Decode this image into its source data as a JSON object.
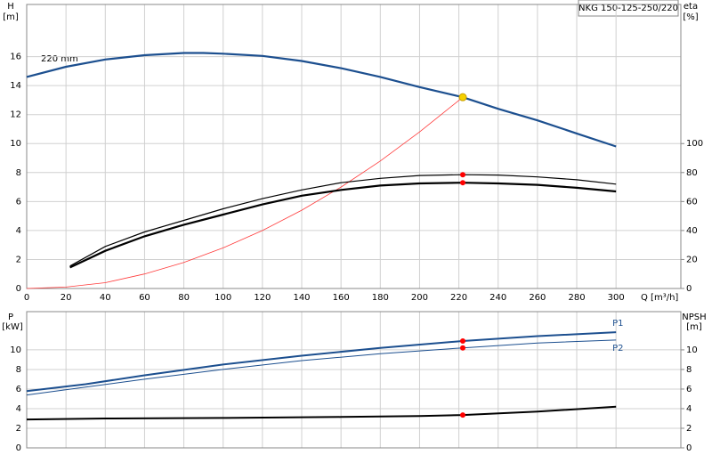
{
  "chart_data": [
    {
      "type": "line",
      "title": "NKG 150-125-250/220",
      "annotation": "220 mm",
      "ylabel": [
        "H",
        "[m]"
      ],
      "y2label": [
        "eta",
        "[%]"
      ],
      "xlabel": "Q [m³/h]",
      "xlim": [
        0,
        333
      ],
      "xticks": [
        0,
        20,
        40,
        60,
        80,
        100,
        120,
        140,
        160,
        180,
        200,
        220,
        240,
        260,
        280,
        300
      ],
      "ylim": [
        0,
        19.6
      ],
      "yticks": [
        0,
        2,
        4,
        6,
        8,
        10,
        12,
        14,
        16
      ],
      "y2lim": [
        0,
        196
      ],
      "y2ticks": [
        0,
        20,
        40,
        60,
        80,
        100
      ],
      "grid": true,
      "series": [
        {
          "color": "#1c4f8f",
          "width": 2.2,
          "axis": "y",
          "x": [
            0,
            20,
            40,
            60,
            80,
            90,
            100,
            120,
            140,
            160,
            180,
            200,
            222,
            240,
            260,
            280,
            300
          ],
          "values": [
            14.6,
            15.3,
            15.8,
            16.1,
            16.25,
            16.25,
            16.2,
            16.05,
            15.7,
            15.2,
            14.6,
            13.9,
            13.2,
            12.4,
            11.6,
            10.7,
            9.8
          ]
        },
        {
          "color": "#ff3b3b",
          "width": 0.8,
          "axis": "y",
          "x": [
            0,
            20,
            40,
            60,
            80,
            100,
            120,
            140,
            160,
            180,
            200,
            222
          ],
          "values": [
            0,
            0.1,
            0.4,
            1.0,
            1.8,
            2.8,
            4.0,
            5.4,
            7.0,
            8.8,
            10.8,
            13.2
          ]
        },
        {
          "color": "#000000",
          "width": 1.2,
          "axis": "y2",
          "x": [
            22,
            40,
            60,
            80,
            100,
            120,
            140,
            160,
            180,
            200,
            222,
            240,
            260,
            280,
            300
          ],
          "values": [
            15.5,
            29,
            39,
            47,
            55,
            62,
            68,
            73,
            76,
            78,
            78.5,
            78.3,
            77,
            75,
            72
          ]
        },
        {
          "color": "#000000",
          "width": 2.2,
          "axis": "y2",
          "x": [
            22,
            40,
            60,
            80,
            100,
            120,
            140,
            160,
            180,
            200,
            222,
            240,
            260,
            280,
            300
          ],
          "values": [
            14.5,
            26,
            36,
            44,
            51,
            58,
            64,
            68,
            71,
            72.5,
            73,
            72.5,
            71.5,
            69.5,
            67
          ]
        }
      ],
      "points": [
        {
          "x": 222,
          "value": 13.2,
          "color": "#f5d000",
          "axis": "y"
        },
        {
          "x": 222,
          "value": 78.5,
          "color": "#ff0000",
          "axis": "y2"
        },
        {
          "x": 222,
          "value": 73,
          "color": "#ff0000",
          "axis": "y2"
        }
      ]
    },
    {
      "type": "line",
      "ylabel": [
        "P",
        "[kW]"
      ],
      "y2label": [
        "NPSH",
        "[m]"
      ],
      "xlim": [
        0,
        333
      ],
      "ylim": [
        0,
        13.9
      ],
      "yticks": [
        0,
        2,
        4,
        6,
        8,
        10
      ],
      "y2lim": [
        0,
        13.9
      ],
      "y2ticks": [
        0,
        2,
        4,
        6,
        8,
        10
      ],
      "grid": true,
      "series": [
        {
          "name": "P1",
          "color": "#1c4f8f",
          "width": 2,
          "axis": "y",
          "x": [
            0,
            30,
            60,
            100,
            140,
            180,
            222,
            260,
            300
          ],
          "values": [
            5.8,
            6.5,
            7.4,
            8.5,
            9.4,
            10.2,
            10.9,
            11.4,
            11.8
          ]
        },
        {
          "name": "P2",
          "color": "#1c4f8f",
          "width": 1,
          "axis": "y",
          "x": [
            0,
            30,
            60,
            100,
            140,
            180,
            222,
            260,
            300
          ],
          "values": [
            5.4,
            6.2,
            7.0,
            8.0,
            8.9,
            9.6,
            10.2,
            10.7,
            11.0
          ]
        },
        {
          "color": "#000000",
          "width": 2,
          "axis": "y2",
          "x": [
            0,
            40,
            100,
            160,
            200,
            222,
            260,
            300
          ],
          "values": [
            2.9,
            3.0,
            3.05,
            3.15,
            3.25,
            3.35,
            3.7,
            4.2
          ]
        }
      ],
      "points": [
        {
          "x": 222,
          "value": 10.9,
          "color": "#ff0000",
          "axis": "y"
        },
        {
          "x": 222,
          "value": 10.2,
          "color": "#ff0000",
          "axis": "y"
        },
        {
          "x": 222,
          "value": 3.35,
          "color": "#ff0000",
          "axis": "y2"
        }
      ]
    }
  ]
}
